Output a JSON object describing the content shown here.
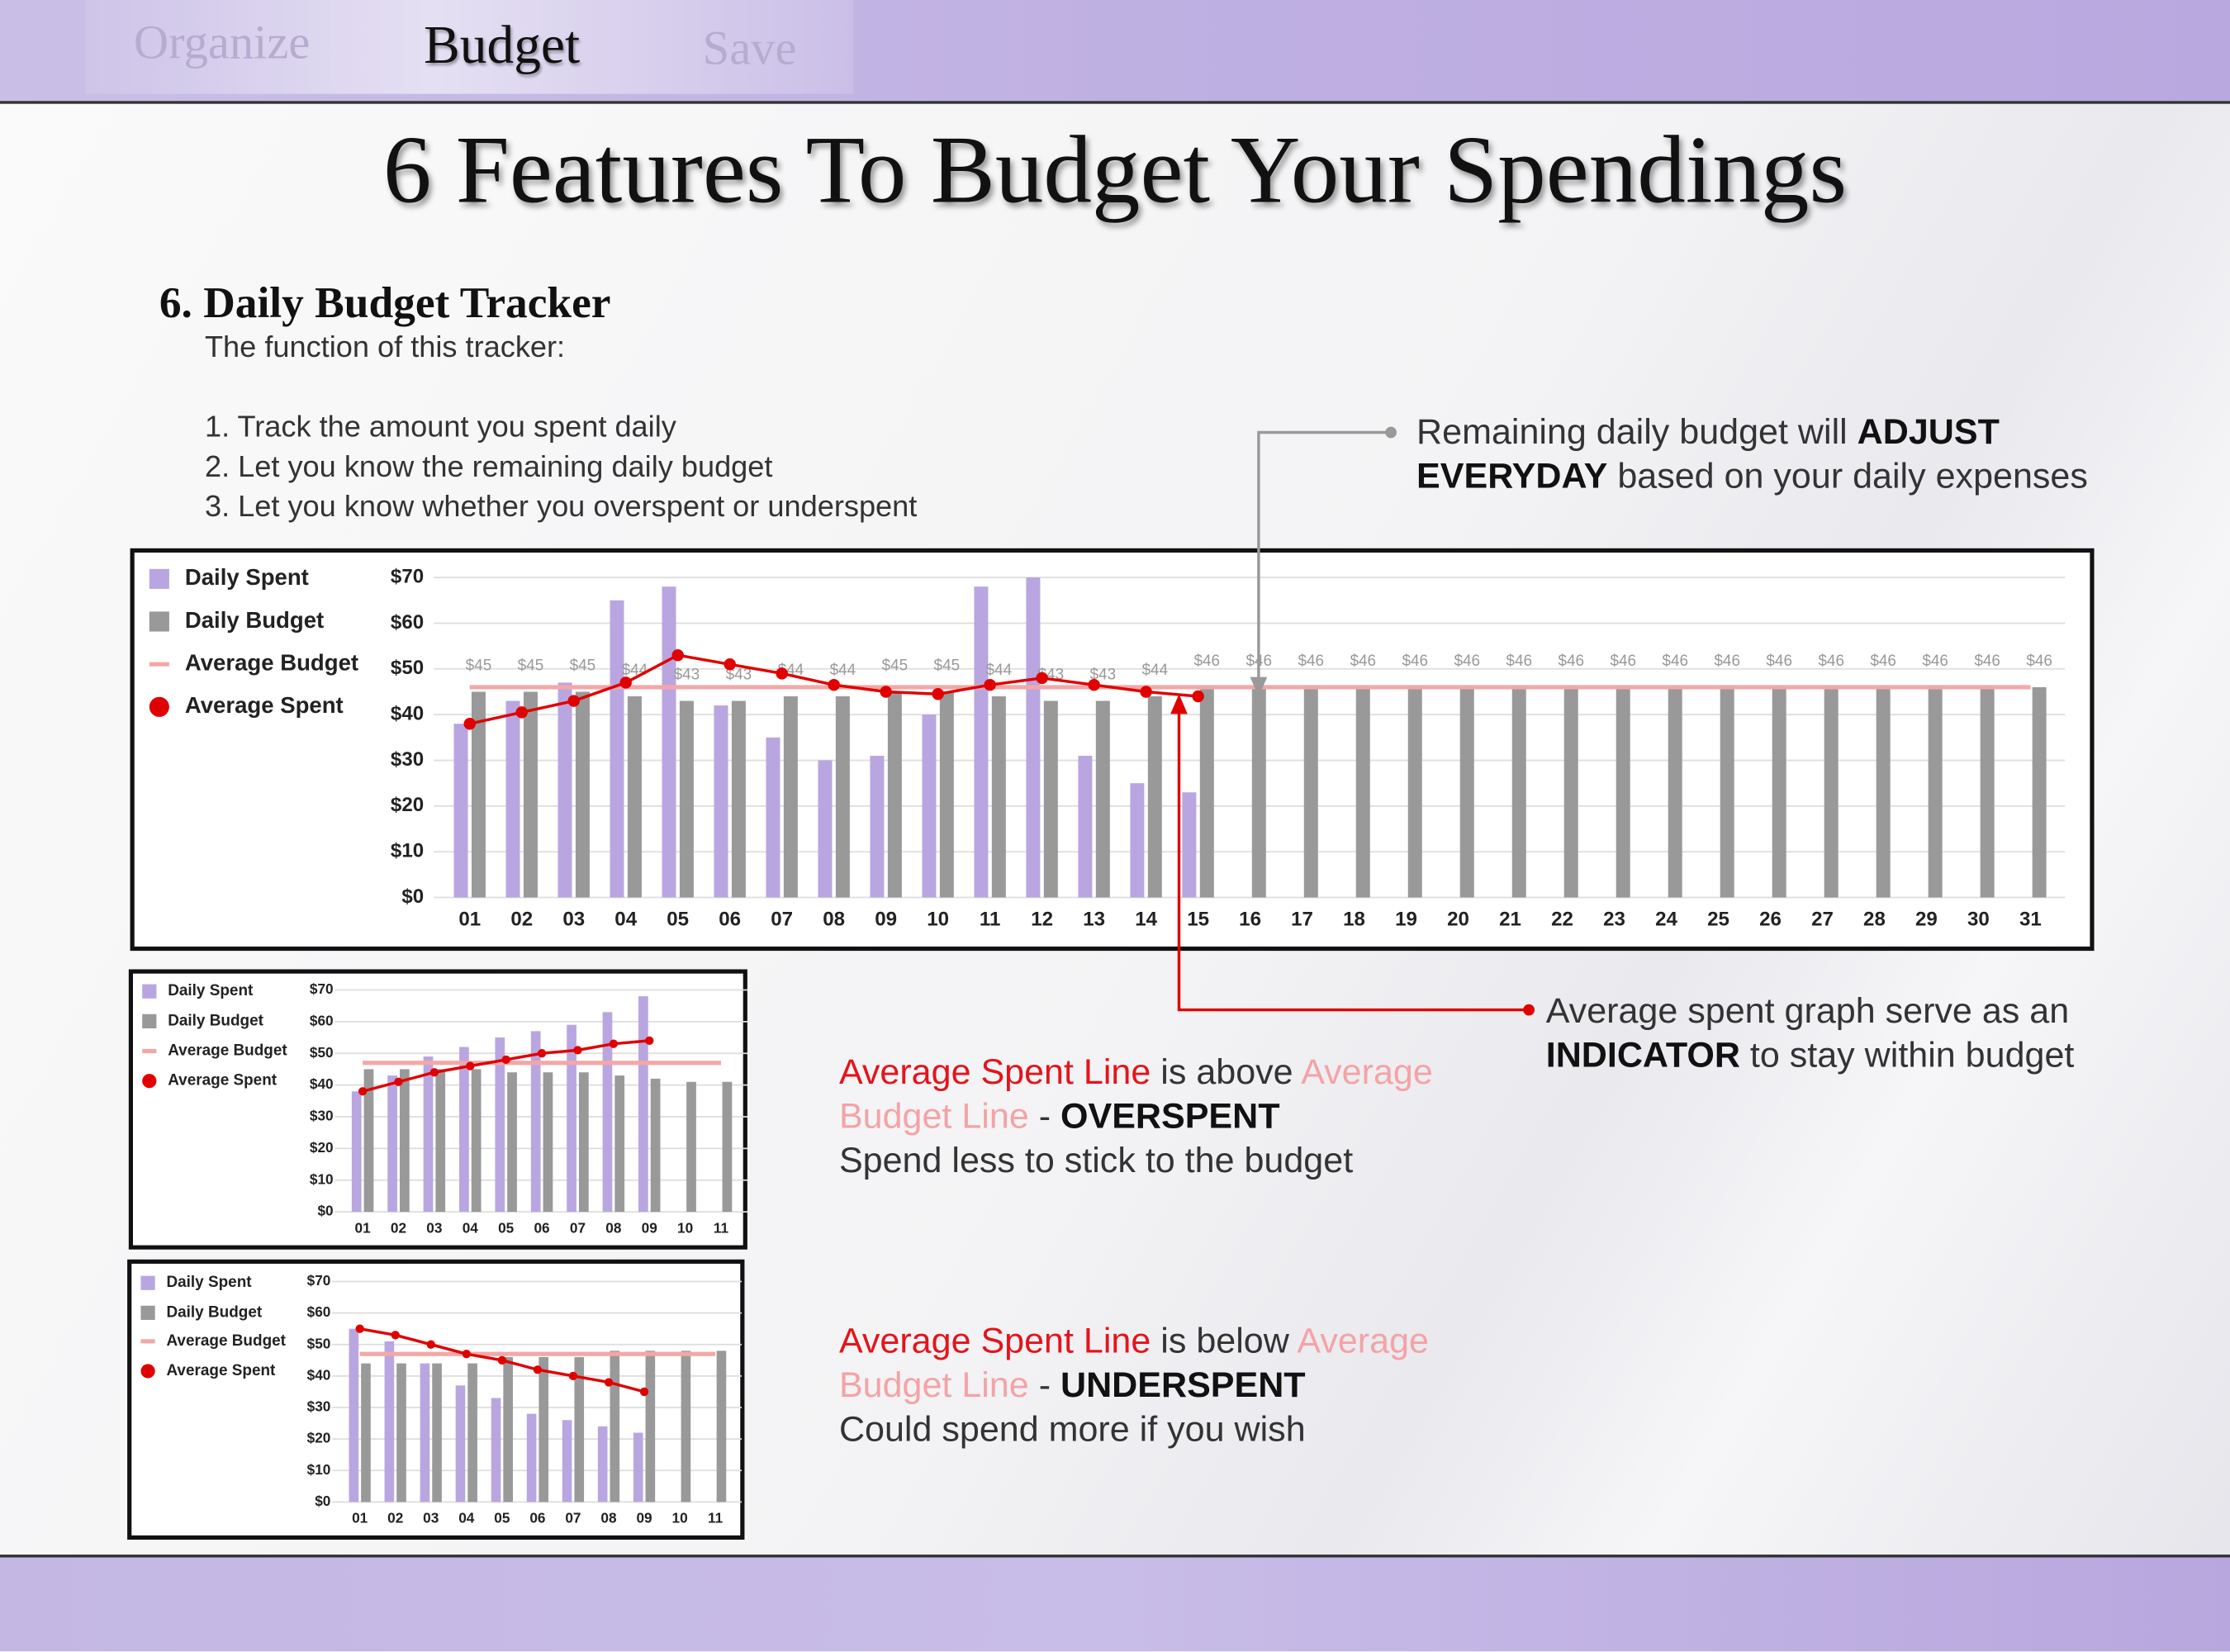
{
  "nav": {
    "tabs": [
      "Organize",
      "Budget",
      "Save"
    ]
  },
  "title": "6 Features To Budget Your Spendings",
  "section": {
    "heading": "6. Daily Budget Tracker",
    "intro": "The function of this tracker:",
    "items": [
      "1. Track the amount you spent daily",
      "2. Let you know the remaining daily budget",
      "3. Let you know whether you overspent or underspent"
    ]
  },
  "notes": {
    "adjust": [
      "Remaining daily budget will ",
      "ADJUST EVERYDAY",
      " based on your daily expenses"
    ],
    "indicator": [
      "Average spent graph serve as an ",
      "INDICATOR",
      " to stay within budget"
    ],
    "overspent": [
      "Average Spent Line",
      " is above ",
      "Average Budget Line",
      " - ",
      "OVERSPENT",
      "Spend less to stick to the budget"
    ],
    "underspent": [
      "Average Spent Line",
      " is below ",
      "Average Budget Line",
      " - ",
      "UNDERSPENT",
      "Could spend more if you wish"
    ]
  },
  "chart_data": [
    {
      "type": "bar",
      "categories": [
        "01",
        "02",
        "03",
        "04",
        "05",
        "06",
        "07",
        "08",
        "09",
        "10",
        "11",
        "12",
        "13",
        "14",
        "15",
        "16",
        "17",
        "18",
        "19",
        "20",
        "21",
        "22",
        "23",
        "24",
        "25",
        "26",
        "27",
        "28",
        "29",
        "30",
        "31"
      ],
      "ylim": [
        0,
        70
      ],
      "yticks": [
        {
          "value": 0,
          "label": "$0"
        },
        {
          "value": 10,
          "label": "$10"
        },
        {
          "value": 20,
          "label": "$20"
        },
        {
          "value": 30,
          "label": "$30"
        },
        {
          "value": 40,
          "label": "$40"
        },
        {
          "value": 50,
          "label": "$50"
        },
        {
          "value": 60,
          "label": "$60"
        },
        {
          "value": 70,
          "label": "$70"
        }
      ],
      "grid": true,
      "legend": "left",
      "series": [
        {
          "name": "Daily Spent",
          "type": "bar",
          "color": "#b9a6e0",
          "values": [
            38,
            43,
            47,
            65,
            68,
            42,
            35,
            30,
            31,
            40,
            68,
            70,
            31,
            25,
            23,
            null,
            null,
            null,
            null,
            null,
            null,
            null,
            null,
            null,
            null,
            null,
            null,
            null,
            null,
            null,
            null
          ]
        },
        {
          "name": "Daily Budget",
          "type": "bar",
          "color": "#999999",
          "values": [
            45,
            45,
            45,
            44,
            43,
            43,
            44,
            44,
            45,
            45,
            44,
            43,
            43,
            44,
            46,
            46,
            46,
            46,
            46,
            46,
            46,
            46,
            46,
            46,
            46,
            46,
            46,
            46,
            46,
            46,
            46
          ],
          "value_labels": [
            "$45",
            "$45",
            "$45",
            "$44",
            "$43",
            "$43",
            "$44",
            "$44",
            "$45",
            "$45",
            "$44",
            "$43",
            "$43",
            "$44",
            "$46",
            "$46",
            "$46",
            "$46",
            "$46",
            "$46",
            "$46",
            "$46",
            "$46",
            "$46",
            "$46",
            "$46",
            "$46",
            "$46",
            "$46",
            "$46",
            "$46"
          ]
        },
        {
          "name": "Average Budget",
          "type": "line",
          "color": "#f4a7a7",
          "values": [
            46,
            46,
            46,
            46,
            46,
            46,
            46,
            46,
            46,
            46,
            46,
            46,
            46,
            46,
            46,
            46,
            46,
            46,
            46,
            46,
            46,
            46,
            46,
            46,
            46,
            46,
            46,
            46,
            46,
            46,
            46
          ]
        },
        {
          "name": "Average Spent",
          "type": "line",
          "markers": true,
          "color": "#e00000",
          "values": [
            38,
            40.5,
            43,
            47,
            53,
            51,
            49,
            46.5,
            45,
            44.5,
            46.5,
            48,
            46.5,
            45,
            44,
            null,
            null,
            null,
            null,
            null,
            null,
            null,
            null,
            null,
            null,
            null,
            null,
            null,
            null,
            null,
            null
          ]
        }
      ]
    },
    {
      "type": "bar",
      "categories": [
        "01",
        "02",
        "03",
        "04",
        "05",
        "06",
        "07",
        "08",
        "09",
        "10",
        "11"
      ],
      "ylim": [
        0,
        70
      ],
      "yticks": [
        {
          "value": 0,
          "label": "$0"
        },
        {
          "value": 10,
          "label": "$10"
        },
        {
          "value": 20,
          "label": "$20"
        },
        {
          "value": 30,
          "label": "$30"
        },
        {
          "value": 40,
          "label": "$40"
        },
        {
          "value": 50,
          "label": "$50"
        },
        {
          "value": 60,
          "label": "$60"
        },
        {
          "value": 70,
          "label": "$70"
        }
      ],
      "grid": true,
      "legend": "left",
      "series": [
        {
          "name": "Daily Spent",
          "type": "bar",
          "color": "#b9a6e0",
          "values": [
            38,
            43,
            49,
            52,
            55,
            57,
            59,
            63,
            68,
            null,
            null
          ]
        },
        {
          "name": "Daily Budget",
          "type": "bar",
          "color": "#999999",
          "values": [
            45,
            45,
            45,
            45,
            44,
            44,
            44,
            43,
            42,
            41,
            41
          ]
        },
        {
          "name": "Average Budget",
          "type": "line",
          "color": "#f4a7a7",
          "values": [
            47,
            47,
            47,
            47,
            47,
            47,
            47,
            47,
            47,
            47,
            47
          ]
        },
        {
          "name": "Average Spent",
          "type": "line",
          "markers": true,
          "color": "#e00000",
          "values": [
            38,
            41,
            44,
            46,
            48,
            50,
            51,
            53,
            54,
            null,
            null
          ]
        }
      ]
    },
    {
      "type": "bar",
      "categories": [
        "01",
        "02",
        "03",
        "04",
        "05",
        "06",
        "07",
        "08",
        "09",
        "10",
        "11"
      ],
      "ylim": [
        0,
        70
      ],
      "yticks": [
        {
          "value": 0,
          "label": "$0"
        },
        {
          "value": 10,
          "label": "$10"
        },
        {
          "value": 20,
          "label": "$20"
        },
        {
          "value": 30,
          "label": "$30"
        },
        {
          "value": 40,
          "label": "$40"
        },
        {
          "value": 50,
          "label": "$50"
        },
        {
          "value": 60,
          "label": "$60"
        },
        {
          "value": 70,
          "label": "$70"
        }
      ],
      "grid": true,
      "legend": "left",
      "series": [
        {
          "name": "Daily Spent",
          "type": "bar",
          "color": "#b9a6e0",
          "values": [
            55,
            51,
            44,
            37,
            33,
            28,
            26,
            24,
            22,
            null,
            null
          ]
        },
        {
          "name": "Daily Budget",
          "type": "bar",
          "color": "#999999",
          "values": [
            44,
            44,
            44,
            44,
            46,
            46,
            46,
            48,
            48,
            48,
            48
          ]
        },
        {
          "name": "Average Budget",
          "type": "line",
          "color": "#f4a7a7",
          "values": [
            47,
            47,
            47,
            47,
            47,
            47,
            47,
            47,
            47,
            47,
            47
          ]
        },
        {
          "name": "Average Spent",
          "type": "line",
          "markers": true,
          "color": "#e00000",
          "values": [
            55,
            53,
            50,
            47,
            45,
            42,
            40,
            38,
            35,
            null,
            null
          ]
        }
      ]
    }
  ]
}
